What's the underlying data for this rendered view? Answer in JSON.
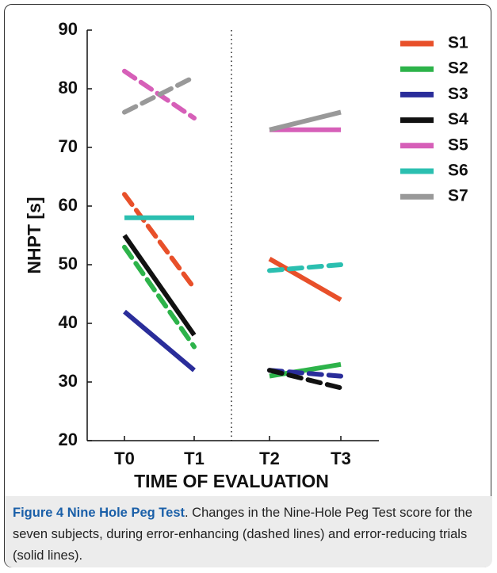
{
  "chart_data": {
    "type": "line",
    "categories": [
      "T0",
      "T1",
      "T2",
      "T3"
    ],
    "ylabel": "NHPT [s]",
    "xlabel": "TIME OF EVALUATION",
    "ylim": [
      20,
      90
    ],
    "yticks": [
      20,
      30,
      40,
      50,
      60,
      70,
      80,
      90
    ],
    "legend": "upper right",
    "series": [
      {
        "name": "S1",
        "color": "#e8502a",
        "values": [
          62,
          46,
          51,
          44
        ],
        "dashed_segments": [
          true,
          false
        ]
      },
      {
        "name": "S2",
        "color": "#2db34a",
        "values": [
          53,
          36,
          31,
          33
        ],
        "dashed_segments": [
          true,
          false
        ]
      },
      {
        "name": "S3",
        "color": "#2a2d9a",
        "values": [
          42,
          32,
          32,
          31
        ],
        "dashed_segments": [
          false,
          true
        ]
      },
      {
        "name": "S4",
        "color": "#111111",
        "values": [
          55,
          38,
          32,
          29
        ],
        "dashed_segments": [
          false,
          true
        ]
      },
      {
        "name": "S5",
        "color": "#d65fb8",
        "values": [
          83,
          75,
          73,
          73
        ],
        "dashed_segments": [
          true,
          false
        ]
      },
      {
        "name": "S6",
        "color": "#2bbfb0",
        "values": [
          58,
          58,
          49,
          50
        ],
        "dashed_segments": [
          false,
          true
        ]
      },
      {
        "name": "S7",
        "color": "#999999",
        "values": [
          76,
          82,
          73,
          76
        ],
        "dashed_segments": [
          true,
          false
        ]
      }
    ]
  },
  "caption": {
    "label": "Figure 4 Nine Hole Peg Test",
    "text": ". Changes in the Nine-Hole Peg Test score for the seven subjects, during error-enhancing (dashed lines) and error-reducing trials (solid lines)."
  }
}
